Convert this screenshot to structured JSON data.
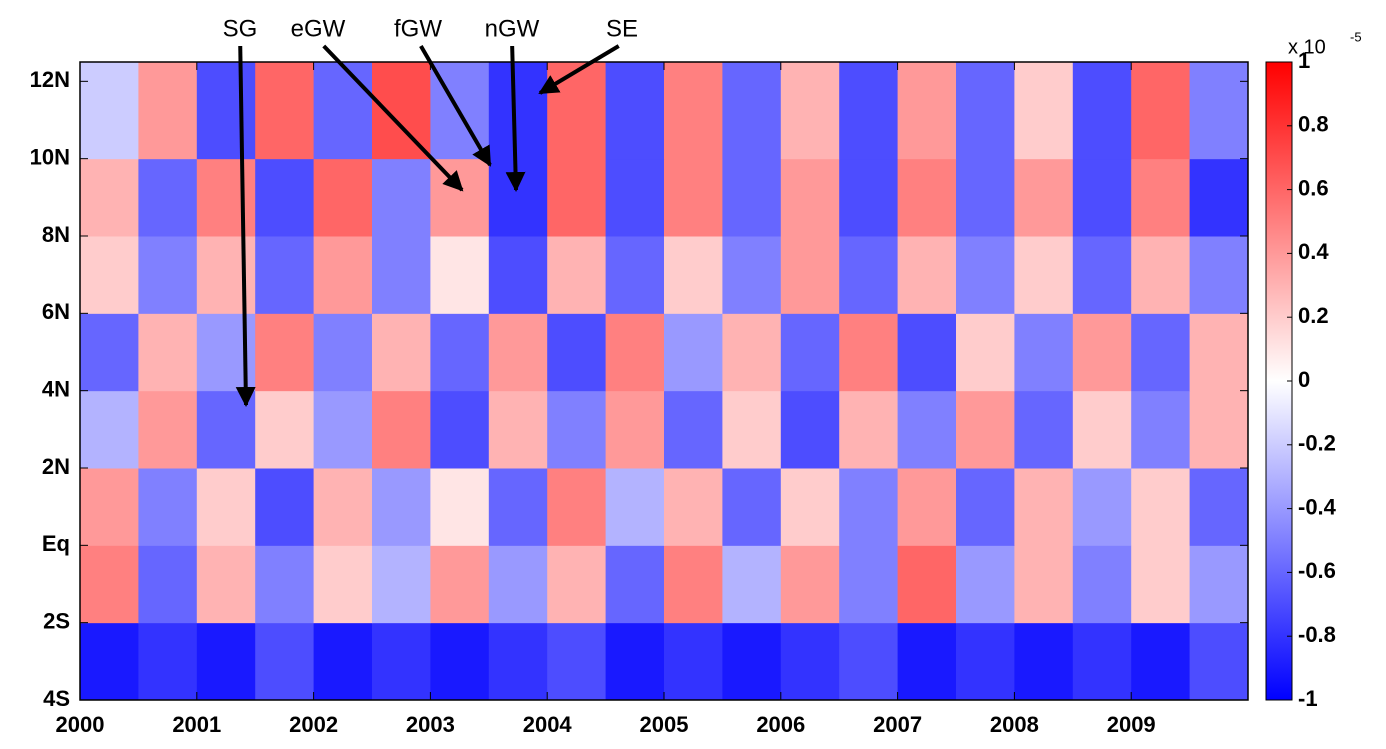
{
  "chart_data": {
    "type": "heatmap",
    "xbins": [
      2000,
      2000.5,
      2001,
      2001.5,
      2002,
      2002.5,
      2003,
      2003.5,
      2004,
      2004.5,
      2005,
      2005.5,
      2006,
      2006.5,
      2007,
      2007.5,
      2008,
      2008.5,
      2009,
      2009.5,
      2010
    ],
    "ybins": [
      -4,
      -2,
      0,
      2,
      4,
      6,
      8,
      10,
      12.5
    ],
    "z": [
      [
        -0.9,
        -0.8,
        -0.9,
        -0.7,
        -0.9,
        -0.8,
        -0.9,
        -0.8,
        -0.7,
        -0.9,
        -0.8,
        -0.9,
        -0.8,
        -0.7,
        -0.9,
        -0.8,
        -0.9,
        -0.8,
        -0.9,
        -0.7
      ],
      [
        0.5,
        -0.6,
        0.3,
        -0.5,
        0.2,
        -0.3,
        0.4,
        -0.4,
        0.3,
        -0.6,
        0.5,
        -0.3,
        0.4,
        -0.5,
        0.6,
        -0.4,
        0.3,
        -0.5,
        0.2,
        -0.4
      ],
      [
        0.4,
        -0.5,
        0.2,
        -0.7,
        0.3,
        -0.4,
        0.1,
        -0.6,
        0.5,
        -0.3,
        0.3,
        -0.6,
        0.2,
        -0.5,
        0.4,
        -0.6,
        0.3,
        -0.4,
        0.2,
        -0.6
      ],
      [
        -0.3,
        0.4,
        -0.6,
        0.2,
        -0.4,
        0.5,
        -0.7,
        0.3,
        -0.5,
        0.4,
        -0.6,
        0.2,
        -0.7,
        0.3,
        -0.5,
        0.4,
        -0.6,
        0.2,
        -0.5,
        0.3
      ],
      [
        -0.6,
        0.3,
        -0.4,
        0.5,
        -0.5,
        0.3,
        -0.6,
        0.4,
        -0.7,
        0.5,
        -0.4,
        0.3,
        -0.6,
        0.5,
        -0.7,
        0.2,
        -0.5,
        0.4,
        -0.6,
        0.3
      ],
      [
        0.2,
        -0.5,
        0.3,
        -0.6,
        0.4,
        -0.5,
        0.1,
        -0.7,
        0.3,
        -0.6,
        0.2,
        -0.5,
        0.4,
        -0.6,
        0.3,
        -0.5,
        0.2,
        -0.6,
        0.3,
        -0.5
      ],
      [
        0.3,
        -0.6,
        0.5,
        -0.7,
        0.6,
        -0.5,
        0.4,
        -0.8,
        0.6,
        -0.7,
        0.5,
        -0.6,
        0.4,
        -0.7,
        0.5,
        -0.6,
        0.4,
        -0.7,
        0.5,
        -0.8
      ],
      [
        -0.2,
        0.4,
        -0.7,
        0.6,
        -0.6,
        0.7,
        -0.5,
        -0.8,
        0.6,
        -0.7,
        0.5,
        -0.6,
        0.3,
        -0.7,
        0.4,
        -0.6,
        0.2,
        -0.7,
        0.6,
        -0.5
      ]
    ],
    "xlim": [
      2000,
      2010
    ],
    "xticks": [
      2000,
      2001,
      2002,
      2003,
      2004,
      2005,
      2006,
      2007,
      2008,
      2009
    ],
    "ylim": [
      -4,
      12.5
    ],
    "yticks": [
      {
        "value": -4,
        "label": "4S"
      },
      {
        "value": -2,
        "label": "2S"
      },
      {
        "value": 0,
        "label": "Eq"
      },
      {
        "value": 2,
        "label": "2N"
      },
      {
        "value": 4,
        "label": "4N"
      },
      {
        "value": 6,
        "label": "6N"
      },
      {
        "value": 8,
        "label": "8N"
      },
      {
        "value": 10,
        "label": "10N"
      },
      {
        "value": 12,
        "label": "12N"
      }
    ],
    "zlim": [
      -1,
      1
    ],
    "colormap": [
      "#0000ff",
      "#ffffff",
      "#ff0000"
    ],
    "colorbar_ticks": [
      -1,
      -0.8,
      -0.6,
      -0.4,
      -0.2,
      0,
      0.2,
      0.4,
      0.6,
      0.8,
      1
    ],
    "colorbar_scale": "x 10",
    "colorbar_exponent": "-5",
    "annotations": [
      "SG",
      "eGW",
      "fGW",
      "nGW",
      "SE"
    ]
  }
}
